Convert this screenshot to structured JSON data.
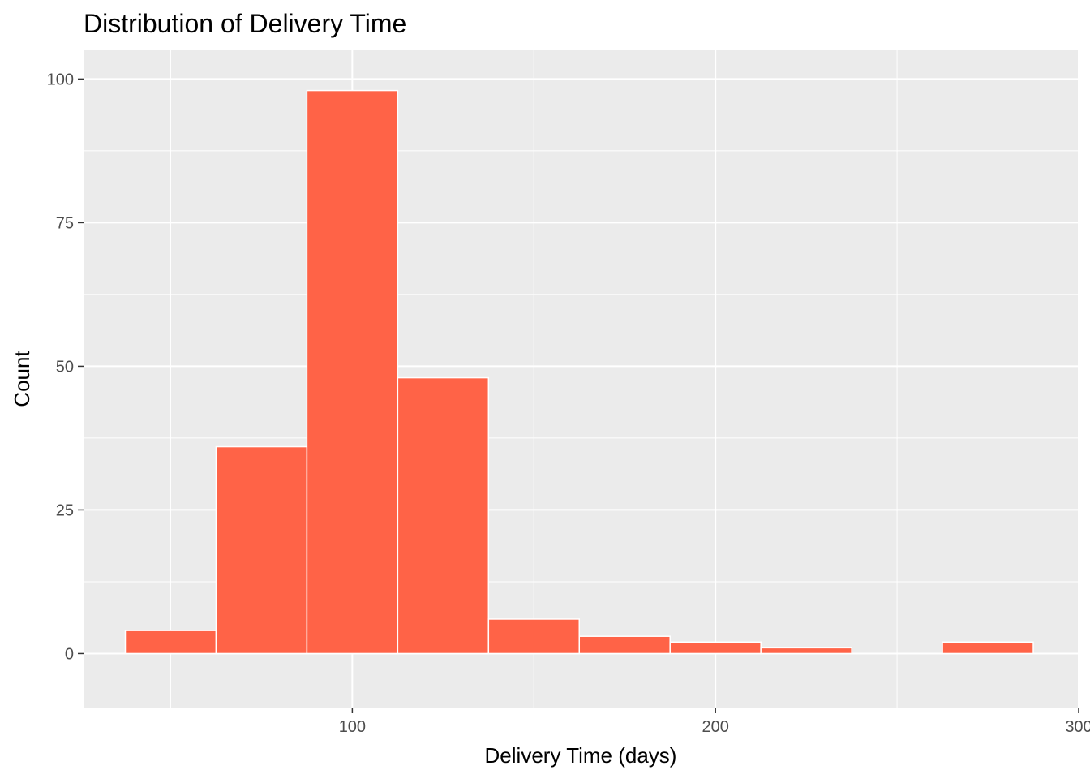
{
  "chart_data": {
    "type": "bar",
    "subtype": "histogram",
    "title": "Distribution of Delivery Time",
    "xlabel": "Delivery Time (days)",
    "ylabel": "Count",
    "xlim": [
      26,
      300
    ],
    "ylim": [
      -9.4,
      105
    ],
    "x_ticks": [
      100,
      200,
      300
    ],
    "x_tick_labels": [
      "100",
      "200",
      "300"
    ],
    "y_ticks": [
      0,
      25,
      50,
      75,
      100
    ],
    "y_tick_labels": [
      "0",
      "25",
      "50",
      "75",
      "100"
    ],
    "bin_width": 25,
    "bins": [
      {
        "start": 37.5,
        "end": 62.5,
        "count": 4
      },
      {
        "start": 62.5,
        "end": 87.5,
        "count": 36
      },
      {
        "start": 87.5,
        "end": 112.5,
        "count": 98
      },
      {
        "start": 112.5,
        "end": 137.5,
        "count": 48
      },
      {
        "start": 137.5,
        "end": 162.5,
        "count": 6
      },
      {
        "start": 162.5,
        "end": 187.5,
        "count": 3
      },
      {
        "start": 187.5,
        "end": 212.5,
        "count": 2
      },
      {
        "start": 212.5,
        "end": 237.5,
        "count": 1
      },
      {
        "start": 237.5,
        "end": 262.5,
        "count": 0
      },
      {
        "start": 262.5,
        "end": 287.5,
        "count": 2
      }
    ],
    "grid": true,
    "legend": "none",
    "colors": {
      "bar_fill": "#FF6347",
      "bar_outline": "#FFFFFF",
      "panel_background": "#EBEBEB",
      "grid_major": "#FFFFFF",
      "grid_minor": "#F5F5F5",
      "tick_text": "#4D4D4D",
      "tick_mark": "#333333"
    }
  }
}
